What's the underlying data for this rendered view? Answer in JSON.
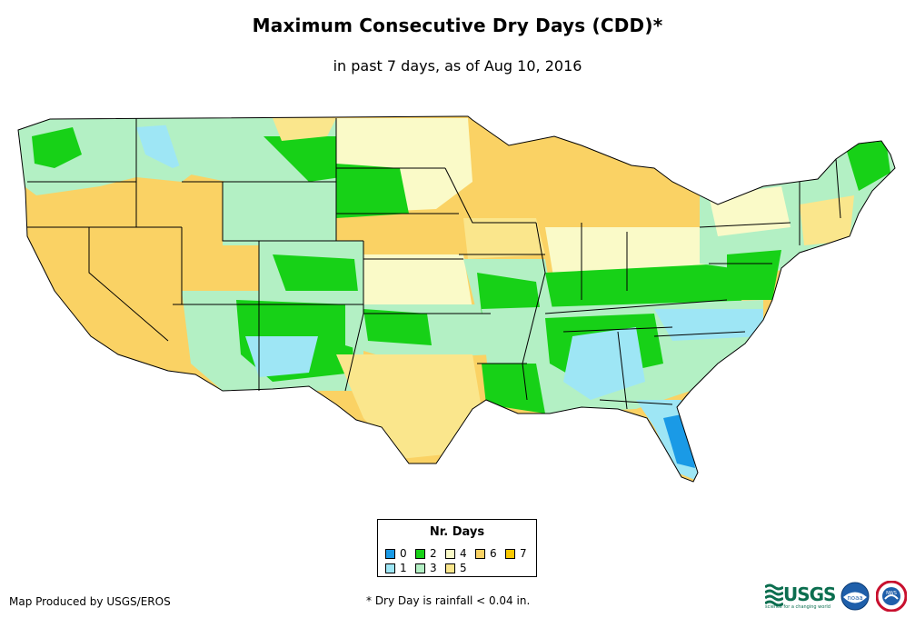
{
  "header": {
    "title": "Maximum Consecutive Dry Days (CDD)*",
    "subtitle": "in past 7 days, as of Aug 10, 2016"
  },
  "legend": {
    "title": "Nr. Days",
    "items": [
      {
        "label": "0",
        "color": "#1a9ae6"
      },
      {
        "label": "1",
        "color": "#9ee6f5"
      },
      {
        "label": "2",
        "color": "#17d117"
      },
      {
        "label": "3",
        "color": "#b3f0c4"
      },
      {
        "label": "4",
        "color": "#fafac8"
      },
      {
        "label": "5",
        "color": "#fae68c"
      },
      {
        "label": "6",
        "color": "#fad264"
      },
      {
        "label": "7",
        "color": "#fac800"
      }
    ]
  },
  "footer": {
    "credit": "Map Produced by USGS/EROS",
    "footnote": "* Dry Day is rainfall < 0.04 in.",
    "usgs_logo_text": "USGS",
    "usgs_tagline": "science for a changing world",
    "noaa_logo_text": "noaa",
    "nws_logo_text": "NWS"
  },
  "colors": {
    "state_border": "#000000",
    "background": "#ffffff"
  }
}
